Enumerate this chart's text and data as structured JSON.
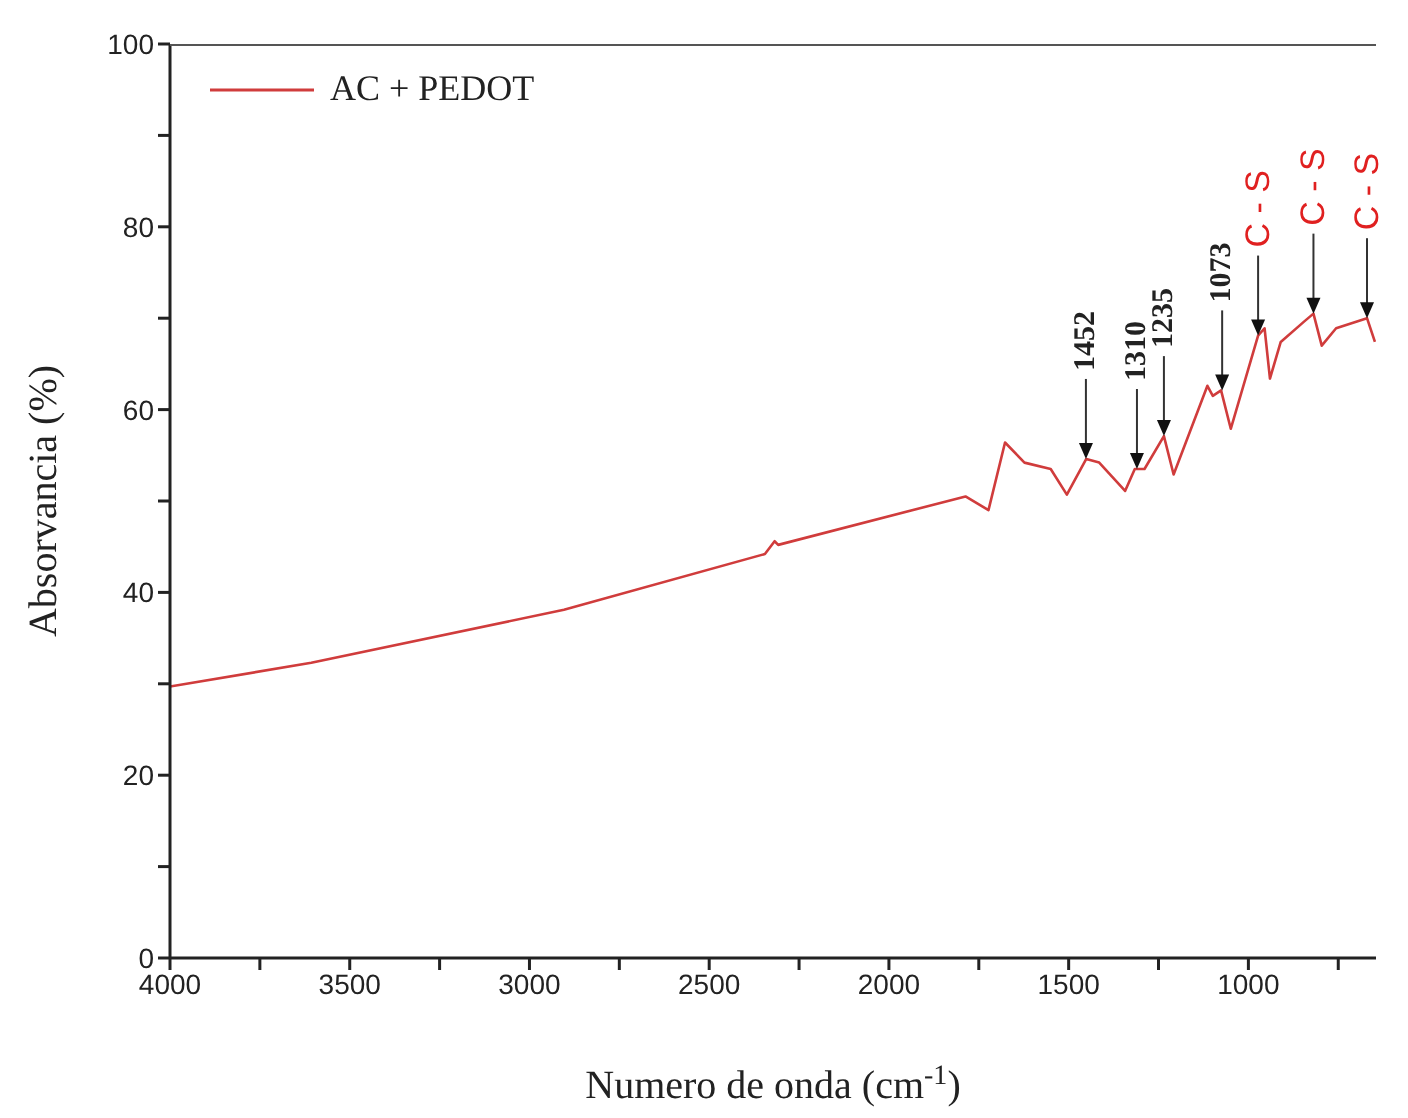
{
  "chart_data": {
    "type": "line",
    "xlabel": "Numero de onda (cm$^{-1}$)",
    "ylabel": "Absorvancia (%)",
    "x": [
      4000,
      3607,
      2904,
      2345,
      2318,
      2308,
      1787,
      1723,
      1677,
      1623,
      1550,
      1505,
      1451,
      1415,
      1343,
      1316,
      1289,
      1235,
      1208,
      1114,
      1099,
      1076,
      1049,
      973,
      955,
      940,
      910,
      846,
      819,
      796,
      756,
      670,
      648
    ],
    "series": [
      {
        "name": "AC + PEDOT",
        "color": "#d03c3c",
        "values": [
          29.7,
          32.3,
          38.1,
          44.2,
          45.6,
          45.2,
          50.5,
          49.0,
          56.4,
          54.2,
          53.5,
          50.7,
          54.6,
          54.2,
          51.1,
          53.5,
          53.5,
          57.1,
          52.9,
          62.6,
          61.5,
          62.1,
          57.9,
          68.1,
          68.9,
          63.4,
          67.4,
          69.6,
          70.5,
          67.0,
          68.9,
          70.0,
          67.4
        ]
      }
    ],
    "xlim": [
      4000,
      645
    ],
    "xticks": [
      4000,
      {
        "value": 3750,
        "label": null
      },
      3500,
      {
        "value": 3250,
        "label": null
      },
      3000,
      {
        "value": 2750,
        "label": null
      },
      2500,
      {
        "value": 2250,
        "label": null
      },
      2000,
      {
        "value": 1750,
        "label": null
      },
      1500,
      {
        "value": 1250,
        "label": null
      },
      1000,
      {
        "value": 750,
        "label": null
      }
    ],
    "ylim": [
      0,
      100
    ],
    "yticks": [
      0,
      {
        "value": 10,
        "label": null
      },
      20,
      {
        "value": 30,
        "label": null
      },
      40,
      {
        "value": 50,
        "label": null
      },
      60,
      {
        "value": 70,
        "label": null
      },
      80,
      {
        "value": 90,
        "label": null
      },
      100
    ],
    "grid": false,
    "legend": "top left",
    "marker": "none",
    "line_style": "solid",
    "annotations": [
      {
        "text": "1452",
        "x": 1452,
        "y": 54.6
      },
      {
        "text": "1310",
        "x": 1310,
        "y": 53.5
      },
      {
        "text": "1235",
        "x": 1235,
        "y": 57.1
      },
      {
        "text": "1073",
        "x": 1073,
        "y": 62.1
      },
      {
        "text": "C - S",
        "x": 973,
        "y": 68.1
      },
      {
        "text": "C - S",
        "x": 819,
        "y": 70.5
      },
      {
        "text": "C - S",
        "x": 670,
        "y": 70.0
      }
    ]
  }
}
